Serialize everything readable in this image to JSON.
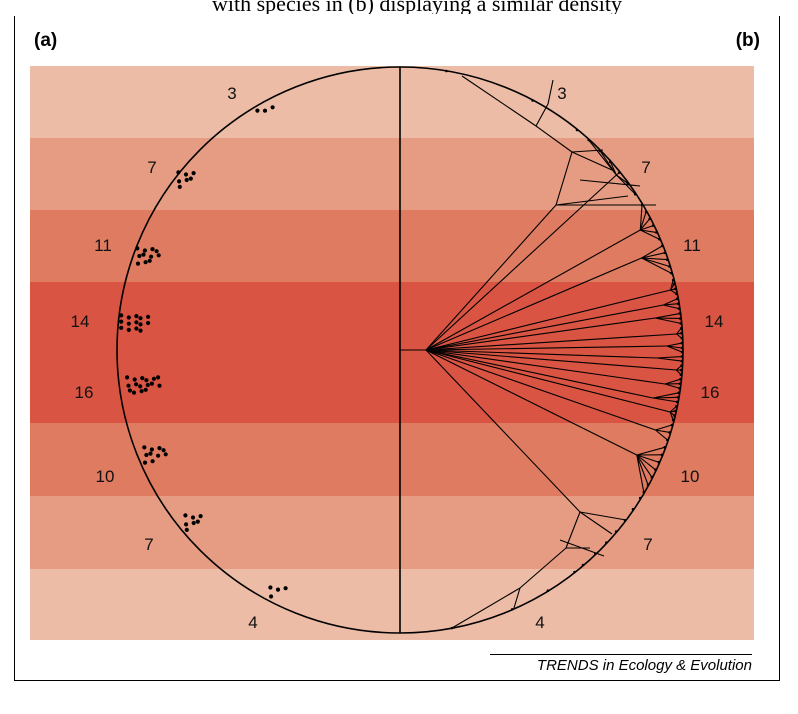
{
  "caption_fragment": "with species in (b) displaying a similar density",
  "panel_labels": {
    "a": "(a)",
    "b": "(b)"
  },
  "bands": [
    {
      "color": "#ecbca6"
    },
    {
      "color": "#e59c82"
    },
    {
      "color": "#df7b60"
    },
    {
      "color": "#d95442"
    },
    {
      "color": "#d95442"
    },
    {
      "color": "#df7b60"
    },
    {
      "color": "#e59c82"
    },
    {
      "color": "#ecbca6"
    }
  ],
  "left_counts": [
    "3",
    "7",
    "11",
    "14",
    "16",
    "10",
    "7",
    "4"
  ],
  "right_counts": [
    "3",
    "7",
    "11",
    "14",
    "16",
    "10",
    "7",
    "4"
  ],
  "credit": "TRENDS in Ecology & Evolution"
}
